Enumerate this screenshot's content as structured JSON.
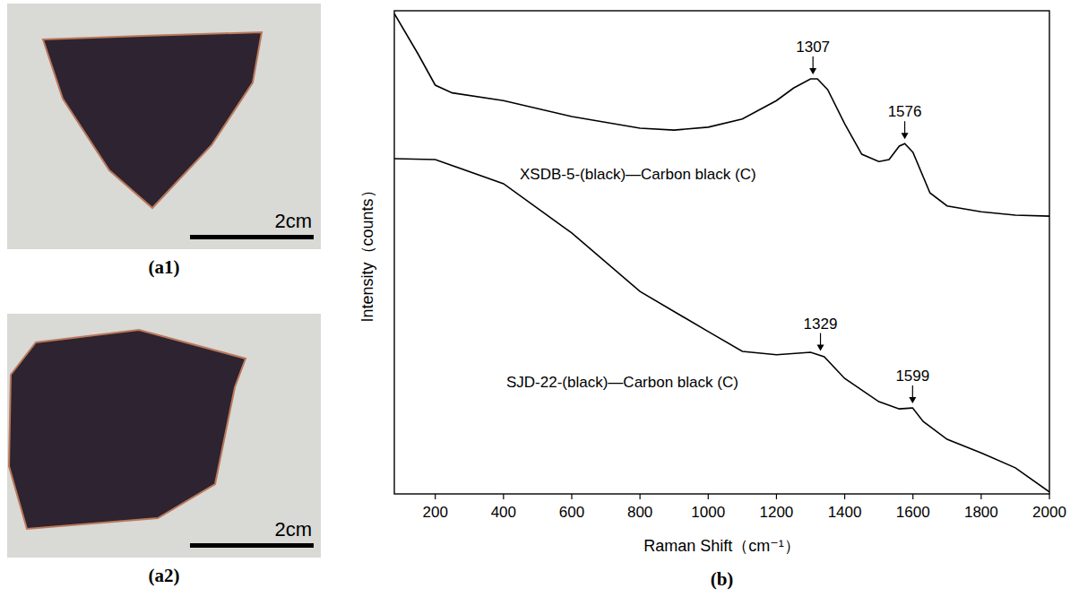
{
  "photos": [
    {
      "label": "(a1)",
      "scale_bar": "2cm"
    },
    {
      "label": "(a2)",
      "scale_bar": "2cm"
    }
  ],
  "chart_data": {
    "type": "line",
    "panel_label": "(b)",
    "x_label": "Raman Shift（cm⁻¹）",
    "y_label": "Intensity（counts）",
    "xlim": [
      80,
      2000
    ],
    "ylim": [
      0,
      100
    ],
    "xticks": [
      200,
      400,
      600,
      800,
      1000,
      1200,
      1400,
      1600,
      1800,
      2000
    ],
    "yticks": [],
    "tick_labels": "x",
    "grid": false,
    "series": [
      {
        "name": "XSDB-5-(black)—Carbon black (C)",
        "color": "#000000",
        "x": [
          80,
          150,
          200,
          250,
          400,
          600,
          800,
          900,
          1000,
          1100,
          1200,
          1250,
          1300,
          1320,
          1350,
          1400,
          1450,
          1500,
          1530,
          1560,
          1576,
          1600,
          1650,
          1700,
          1800,
          1900,
          2000
        ],
        "values": [
          99.4,
          91,
          84.6,
          83,
          81.4,
          78.1,
          75.7,
          75.3,
          75.9,
          77.6,
          81.4,
          84,
          85.9,
          85.9,
          83.7,
          76.6,
          70.3,
          68.8,
          69.2,
          72,
          72.5,
          70.7,
          62.3,
          59.6,
          58.4,
          57.7,
          57.5
        ],
        "annotations": [
          {
            "x": 1307,
            "label": "1307"
          },
          {
            "x": 1576,
            "label": "1576"
          }
        ]
      },
      {
        "name": "SJD-22-(black)—Carbon black (C)",
        "color": "#000000",
        "x": [
          80,
          200,
          400,
          600,
          800,
          1000,
          1100,
          1200,
          1300,
          1340,
          1400,
          1500,
          1560,
          1599,
          1630,
          1700,
          1800,
          1900,
          2000
        ],
        "values": [
          69.4,
          69.2,
          64.2,
          54,
          41.9,
          33.6,
          29.5,
          28.8,
          29.3,
          28.4,
          23.9,
          19.1,
          17.6,
          17.8,
          15,
          11.3,
          8.5,
          5.4,
          0.4
        ],
        "annotations": [
          {
            "x": 1329,
            "label": "1329"
          },
          {
            "x": 1599,
            "label": "1599"
          }
        ]
      }
    ]
  }
}
